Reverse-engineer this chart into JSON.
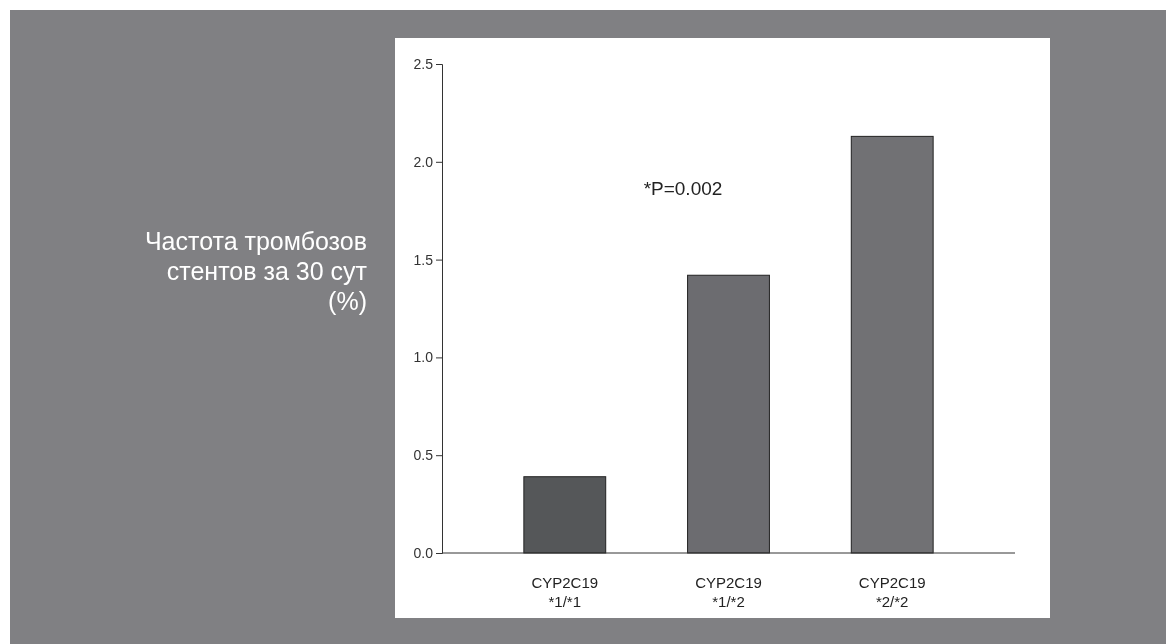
{
  "chart_data": {
    "type": "bar",
    "ylabel": "Частота тромбозов стентов за 30 сут (%)",
    "categories": [
      "CYP2C19\n*1/*1",
      "CYP2C19\n*1/*2",
      "CYP2C19\n*2/*2"
    ],
    "values": [
      0.39,
      1.42,
      2.13
    ],
    "colors": [
      "#555759",
      "#6c6c70",
      "#717174"
    ],
    "ylim": [
      0,
      2.5
    ],
    "yticks": [
      {
        "value": 0,
        "label": "0.0"
      },
      {
        "value": 0.5,
        "label": "0.5"
      },
      {
        "value": 1,
        "label": "1.0"
      },
      {
        "value": 1.5,
        "label": "1.5"
      },
      {
        "value": 2,
        "label": "2.0"
      },
      {
        "value": 2.5,
        "label": "2.5"
      }
    ],
    "annotations": [
      "*P=0.002"
    ],
    "grid": false
  }
}
